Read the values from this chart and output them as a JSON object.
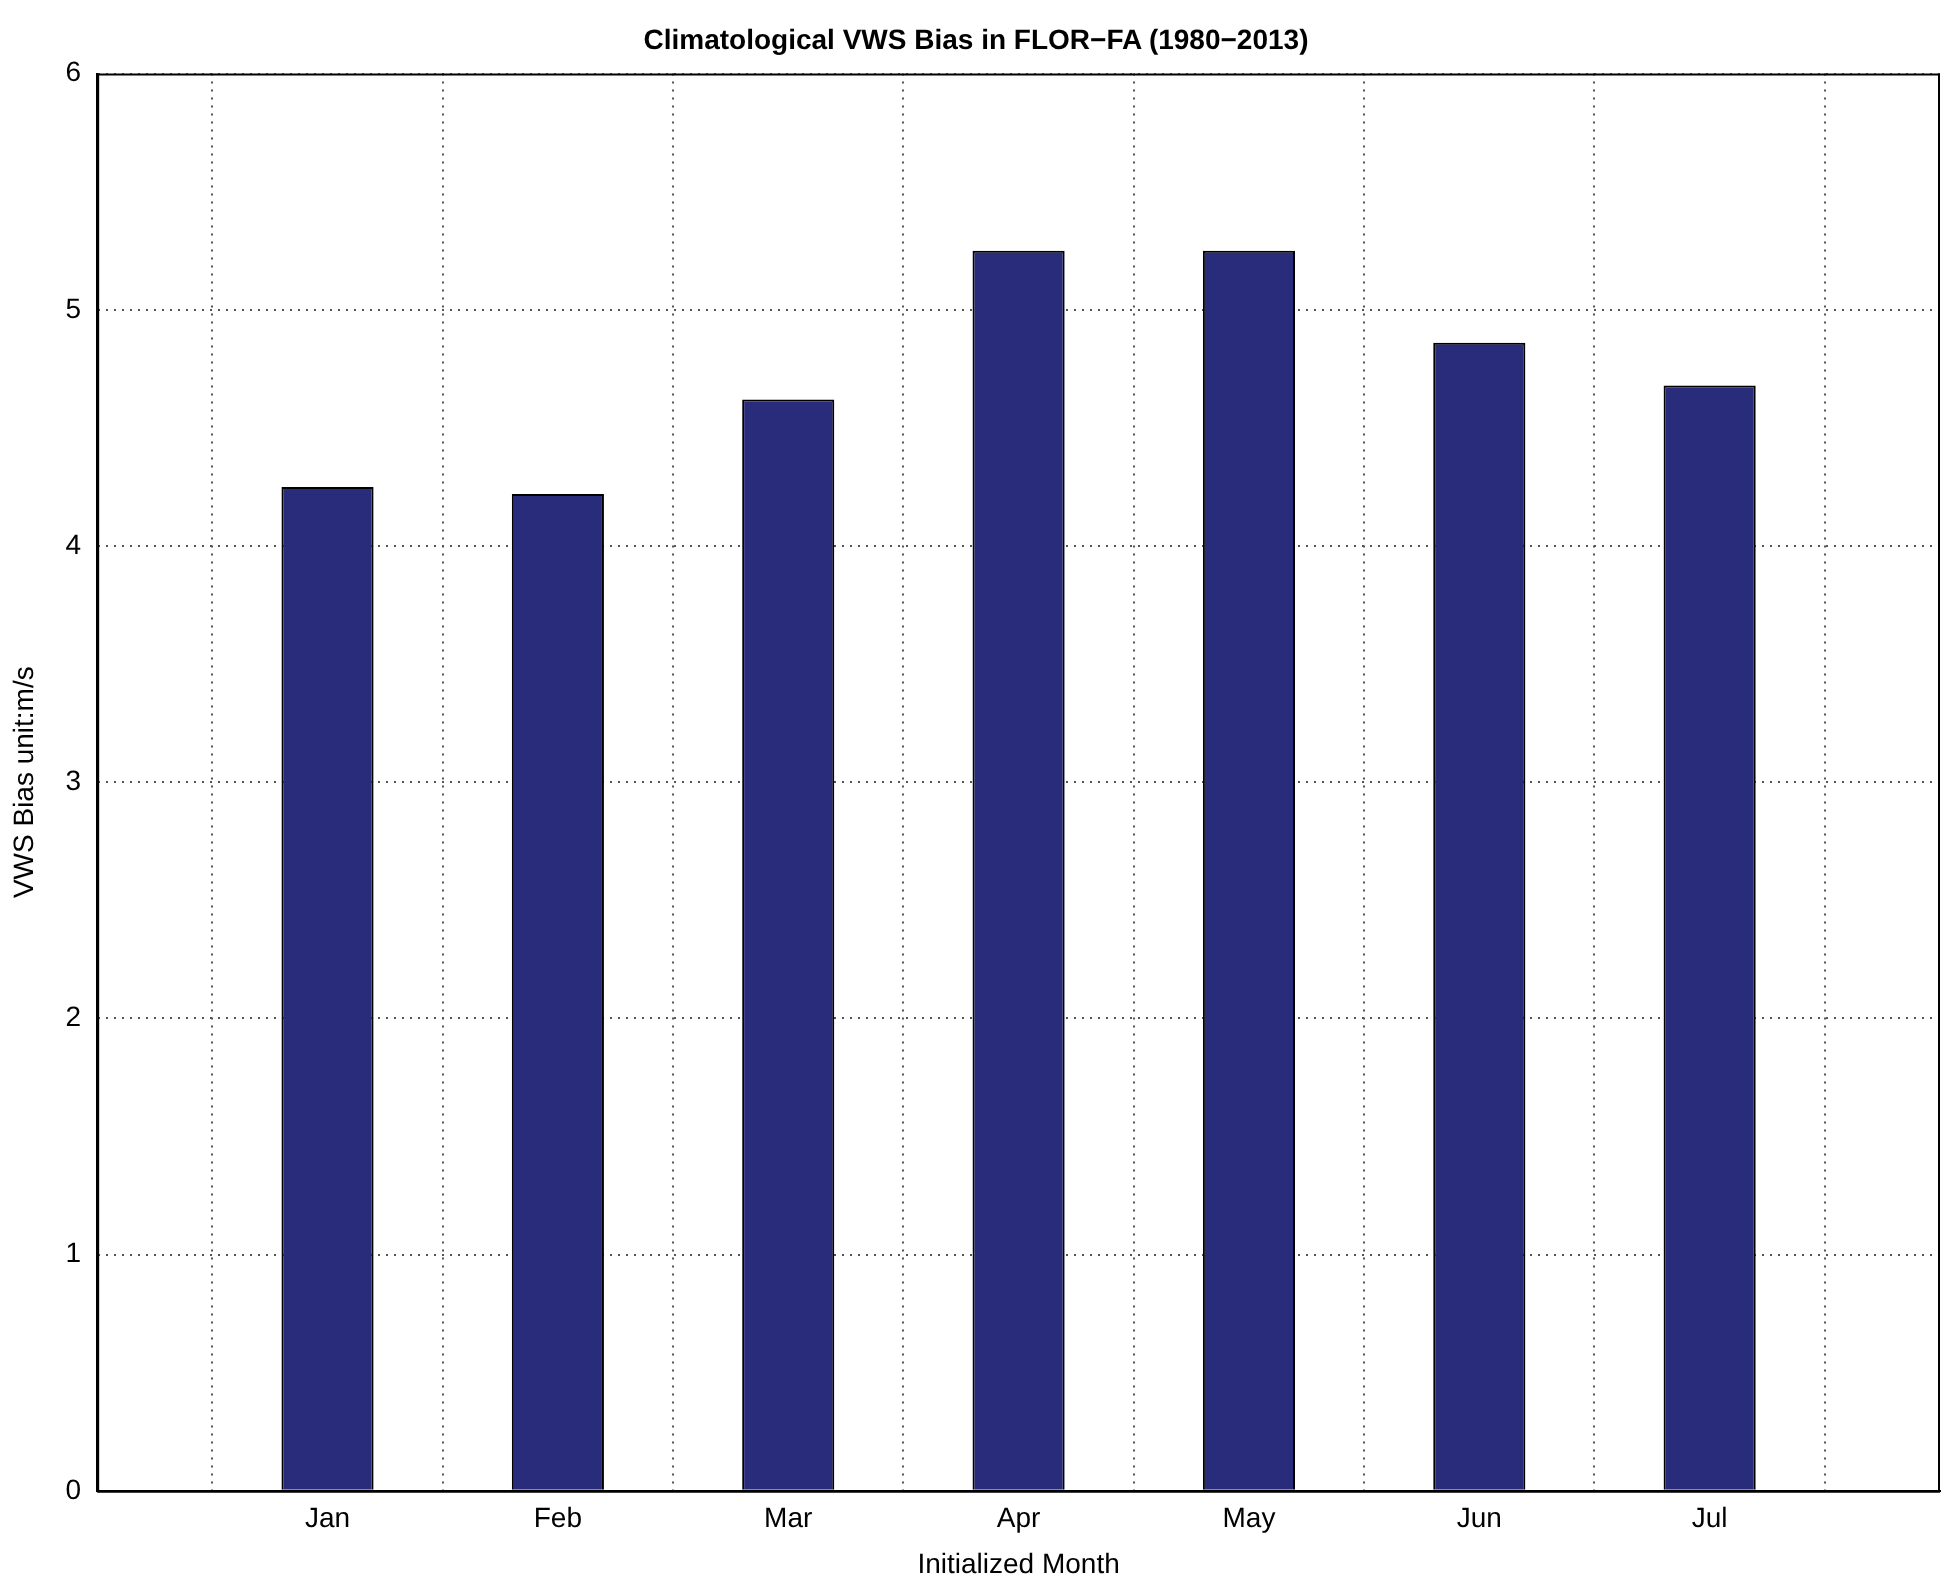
{
  "chart_data": {
    "type": "bar",
    "title": "Climatological VWS Bias in FLOR−FA (1980−2013)",
    "xlabel": "Initialized Month",
    "ylabel": "VWS Bias unit:m/s",
    "categories": [
      null,
      "Jan",
      "Feb",
      "Mar",
      "Apr",
      "May",
      "Jun",
      "Jul",
      null
    ],
    "values": [
      null,
      4.25,
      4.22,
      4.62,
      5.25,
      5.25,
      4.86,
      4.68,
      null
    ],
    "color": "#292c7b",
    "ylim": [
      0,
      6
    ],
    "yticks": [
      0,
      1,
      2,
      3,
      4,
      5,
      6
    ],
    "grid": true
  }
}
